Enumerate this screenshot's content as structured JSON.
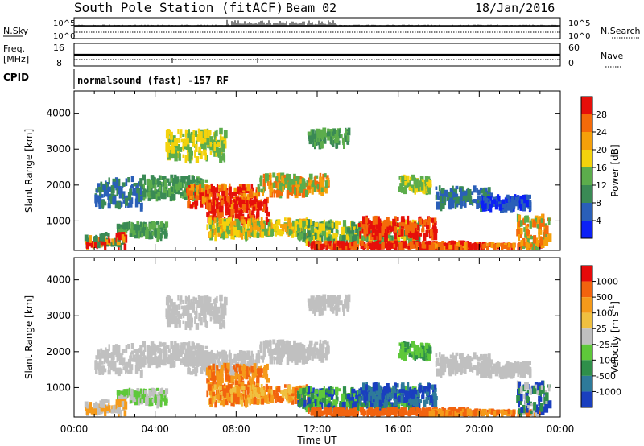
{
  "header": {
    "station": "South Pole Station (fitACF)",
    "beam": "Beam 02",
    "date": "18/Jan/2016"
  },
  "status_panels": {
    "nsky_label": "N.Sky",
    "nsky_ticks": [
      "10^5",
      "10^0"
    ],
    "nsearch_label": "N.Search",
    "nsearch_ticks": [
      "10^5",
      "10^0"
    ],
    "freq_label_1": "Freq.",
    "freq_label_2": "[MHz]",
    "freq_ticks": [
      "16",
      "8"
    ],
    "nave_label": "Nave",
    "nave_ticks": [
      "60",
      "0"
    ],
    "cpid_label": "CPID",
    "cpid_value": "normalsound (fast) -157 RF"
  },
  "chart_data": [
    {
      "type": "heatmap",
      "panel": "power",
      "ylabel": "Slant Range [km]",
      "xlabel": "Time UT",
      "y_ticks": [
        1000,
        2000,
        3000,
        4000
      ],
      "ylim": [
        180,
        4620
      ],
      "x_ticks": [
        "00:00",
        "04:00",
        "08:00",
        "12:00",
        "16:00",
        "20:00",
        "00:00"
      ],
      "xlim_hours": [
        0,
        24
      ],
      "colorbar": {
        "label": "Power [dB]",
        "ticks": [
          "4",
          "8",
          "12",
          "16",
          "20",
          "24",
          "28"
        ],
        "colors": [
          "#0c21f5",
          "#2a5fb8",
          "#3a8a55",
          "#5cad4c",
          "#f4d20c",
          "#f5a00a",
          "#f46a0a",
          "#e60f0a"
        ]
      }
    },
    {
      "type": "heatmap",
      "panel": "velocity",
      "ylabel": "Slant Range [km]",
      "xlabel": "Time UT",
      "y_ticks": [
        1000,
        2000,
        3000,
        4000
      ],
      "ylim": [
        180,
        4620
      ],
      "x_ticks": [
        "00:00",
        "04:00",
        "08:00",
        "12:00",
        "16:00",
        "20:00",
        "00:00"
      ],
      "xlim_hours": [
        0,
        24
      ],
      "colorbar": {
        "label": "Velocity [m s^-1]",
        "ticks": [
          "1000",
          "500",
          "100",
          "25",
          "-25",
          "-100",
          "-500",
          "-1000"
        ],
        "colors": [
          "#1a3fbf",
          "#2e7a9a",
          "#2f8f4a",
          "#5ec83a",
          "#c0c0c0",
          "#f0c040",
          "#f59a1a",
          "#f2630e",
          "#e60a0a"
        ]
      }
    }
  ],
  "footer": {
    "time_axis_label": "Time UT"
  }
}
